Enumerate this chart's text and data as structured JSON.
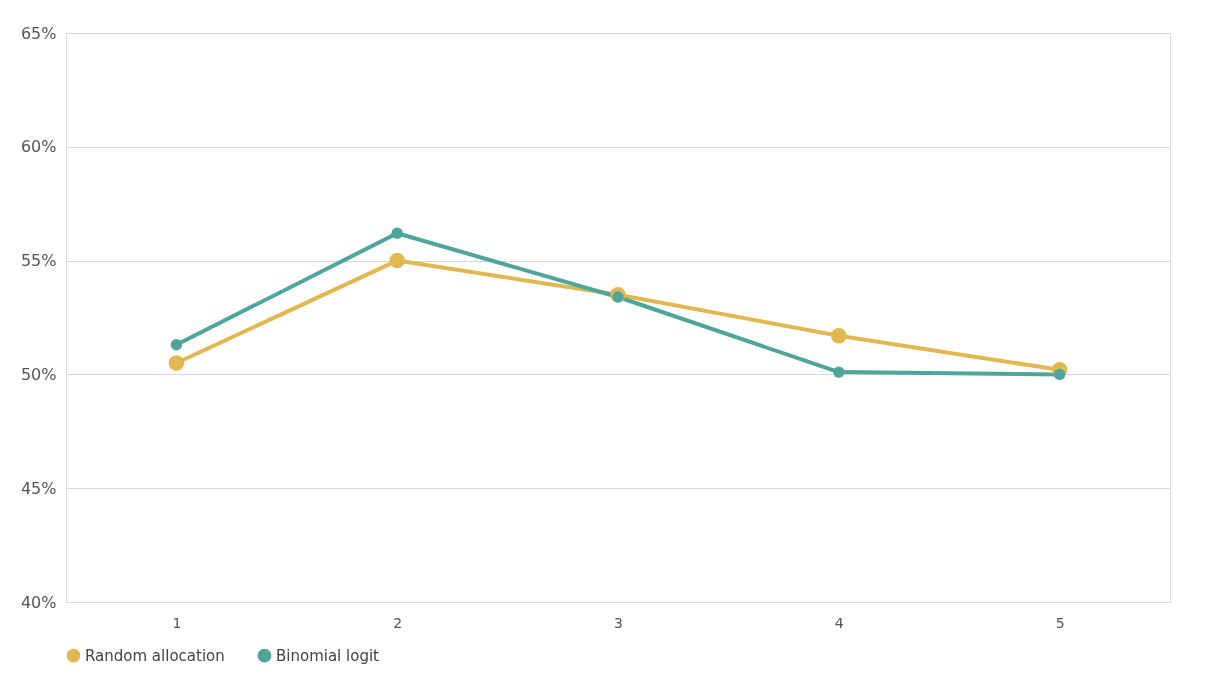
{
  "chart_data": {
    "type": "line",
    "categories": [
      "1",
      "2",
      "3",
      "4",
      "5"
    ],
    "series": [
      {
        "name": "Random allocation",
        "color": "#e0b84f",
        "values": [
          50.5,
          55.0,
          53.5,
          51.7,
          50.2
        ]
      },
      {
        "name": "Binomial logit",
        "color": "#4ea59c",
        "values": [
          51.3,
          56.2,
          53.4,
          50.1,
          50.0
        ]
      }
    ],
    "ylim": [
      40,
      65
    ],
    "yticks": [
      {
        "value": 40,
        "label": "40%"
      },
      {
        "value": 45,
        "label": "45%"
      },
      {
        "value": 50,
        "label": "50%"
      },
      {
        "value": 55,
        "label": "55%"
      },
      {
        "value": 60,
        "label": "60%"
      },
      {
        "value": 65,
        "label": "65%"
      }
    ],
    "grid": "y",
    "legend": "bottom",
    "marker": "circle",
    "line_style": "solid"
  }
}
